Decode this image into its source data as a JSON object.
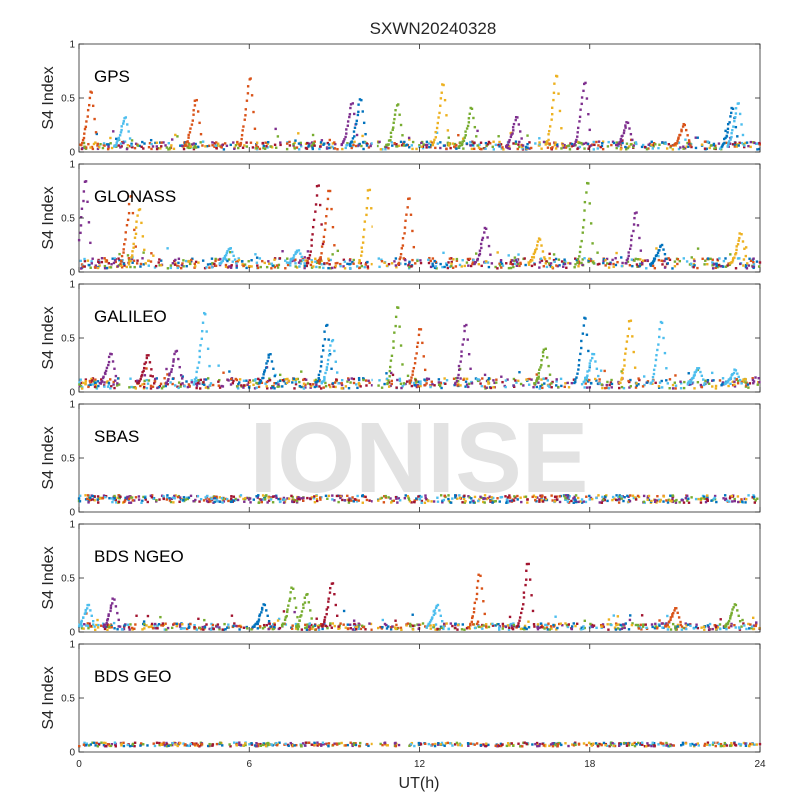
{
  "chart_data": {
    "type": "scatter",
    "title": "SXWN20240328",
    "watermark": "IONISE",
    "xlabel": "UT(h)",
    "ylabel": "S4 Index",
    "xlim": [
      0,
      24
    ],
    "ylim": [
      0,
      1
    ],
    "x_ticks": [
      "0",
      "6",
      "12",
      "18",
      "24"
    ],
    "y_ticks": [
      "0",
      "0.5",
      "1"
    ],
    "data_gap_h": [
      10.35,
      10.5
    ],
    "grid": false,
    "legend": "none",
    "colors": [
      "#0072BD",
      "#D95319",
      "#EDB120",
      "#7E2F8E",
      "#77AC30",
      "#4DBEEE",
      "#A2142F"
    ],
    "panels": [
      {
        "label": "GPS",
        "baseline": 0.06,
        "spikes": [
          {
            "x": 0.4,
            "y": 0.55,
            "c": 1
          },
          {
            "x": 1.6,
            "y": 0.32,
            "c": 5
          },
          {
            "x": 4.1,
            "y": 0.48,
            "c": 1
          },
          {
            "x": 6.0,
            "y": 0.68,
            "c": 1
          },
          {
            "x": 9.6,
            "y": 0.45,
            "c": 3
          },
          {
            "x": 9.9,
            "y": 0.48,
            "c": 0
          },
          {
            "x": 11.2,
            "y": 0.44,
            "c": 4
          },
          {
            "x": 12.8,
            "y": 0.62,
            "c": 2
          },
          {
            "x": 13.8,
            "y": 0.4,
            "c": 4
          },
          {
            "x": 15.4,
            "y": 0.32,
            "c": 3
          },
          {
            "x": 16.8,
            "y": 0.7,
            "c": 2
          },
          {
            "x": 17.8,
            "y": 0.64,
            "c": 3
          },
          {
            "x": 19.3,
            "y": 0.27,
            "c": 3
          },
          {
            "x": 21.3,
            "y": 0.25,
            "c": 1
          },
          {
            "x": 23.0,
            "y": 0.4,
            "c": 0
          },
          {
            "x": 23.2,
            "y": 0.45,
            "c": 5
          }
        ]
      },
      {
        "label": "GLONASS",
        "baseline": 0.08,
        "spikes": [
          {
            "x": 0.2,
            "y": 0.84,
            "c": 3
          },
          {
            "x": 1.8,
            "y": 0.7,
            "c": 1
          },
          {
            "x": 2.1,
            "y": 0.58,
            "c": 2
          },
          {
            "x": 5.3,
            "y": 0.22,
            "c": 5
          },
          {
            "x": 7.7,
            "y": 0.2,
            "c": 5
          },
          {
            "x": 8.4,
            "y": 0.8,
            "c": 6
          },
          {
            "x": 8.8,
            "y": 0.75,
            "c": 1
          },
          {
            "x": 10.2,
            "y": 0.76,
            "c": 2
          },
          {
            "x": 11.6,
            "y": 0.68,
            "c": 1
          },
          {
            "x": 14.3,
            "y": 0.4,
            "c": 3
          },
          {
            "x": 16.2,
            "y": 0.3,
            "c": 2
          },
          {
            "x": 17.9,
            "y": 0.82,
            "c": 4
          },
          {
            "x": 19.6,
            "y": 0.55,
            "c": 3
          },
          {
            "x": 20.5,
            "y": 0.25,
            "c": 0
          },
          {
            "x": 23.3,
            "y": 0.35,
            "c": 2
          }
        ]
      },
      {
        "label": "GALILEO",
        "baseline": 0.08,
        "spikes": [
          {
            "x": 1.1,
            "y": 0.35,
            "c": 3
          },
          {
            "x": 2.4,
            "y": 0.34,
            "c": 6
          },
          {
            "x": 3.4,
            "y": 0.38,
            "c": 3
          },
          {
            "x": 4.4,
            "y": 0.72,
            "c": 5
          },
          {
            "x": 6.7,
            "y": 0.35,
            "c": 0
          },
          {
            "x": 8.7,
            "y": 0.62,
            "c": 0
          },
          {
            "x": 8.9,
            "y": 0.48,
            "c": 5
          },
          {
            "x": 11.2,
            "y": 0.78,
            "c": 4
          },
          {
            "x": 12.0,
            "y": 0.58,
            "c": 1
          },
          {
            "x": 13.6,
            "y": 0.62,
            "c": 3
          },
          {
            "x": 16.4,
            "y": 0.4,
            "c": 4
          },
          {
            "x": 17.8,
            "y": 0.68,
            "c": 0
          },
          {
            "x": 18.1,
            "y": 0.35,
            "c": 5
          },
          {
            "x": 19.4,
            "y": 0.66,
            "c": 2
          },
          {
            "x": 20.5,
            "y": 0.64,
            "c": 5
          },
          {
            "x": 21.8,
            "y": 0.22,
            "c": 5
          },
          {
            "x": 23.1,
            "y": 0.2,
            "c": 5
          }
        ]
      },
      {
        "label": "SBAS",
        "baseline": 0.12,
        "spikes": []
      },
      {
        "label": "BDS NGEO",
        "baseline": 0.05,
        "spikes": [
          {
            "x": 0.3,
            "y": 0.25,
            "c": 5
          },
          {
            "x": 1.2,
            "y": 0.3,
            "c": 3
          },
          {
            "x": 6.5,
            "y": 0.25,
            "c": 0
          },
          {
            "x": 7.5,
            "y": 0.4,
            "c": 4
          },
          {
            "x": 8.0,
            "y": 0.35,
            "c": 4
          },
          {
            "x": 8.9,
            "y": 0.45,
            "c": 6
          },
          {
            "x": 12.6,
            "y": 0.25,
            "c": 5
          },
          {
            "x": 14.1,
            "y": 0.52,
            "c": 1
          },
          {
            "x": 15.8,
            "y": 0.63,
            "c": 6
          },
          {
            "x": 21.0,
            "y": 0.22,
            "c": 1
          },
          {
            "x": 23.1,
            "y": 0.25,
            "c": 4
          }
        ]
      },
      {
        "label": "BDS GEO",
        "baseline": 0.07,
        "spikes": []
      }
    ]
  }
}
